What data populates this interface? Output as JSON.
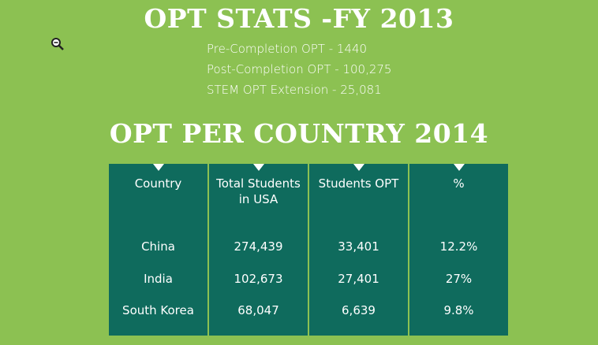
{
  "header": {
    "title": "OPT STATS -FY 2013",
    "stats": [
      "Pre-Completion OPT - 1440",
      "Post-Completion OPT - 100,275",
      "STEM OPT Extension - 25,081"
    ]
  },
  "table": {
    "title": "OPT PER COUNTRY 2014",
    "columns": [
      "Country",
      "Total Students in USA",
      "Students OPT",
      "%"
    ],
    "rows": [
      [
        "China",
        "274,439",
        "33,401",
        "12.2%"
      ],
      [
        "India",
        "102,673",
        "27,401",
        "27%"
      ],
      [
        "South Korea",
        "68,047",
        "6,639",
        "9.8%"
      ]
    ]
  }
}
